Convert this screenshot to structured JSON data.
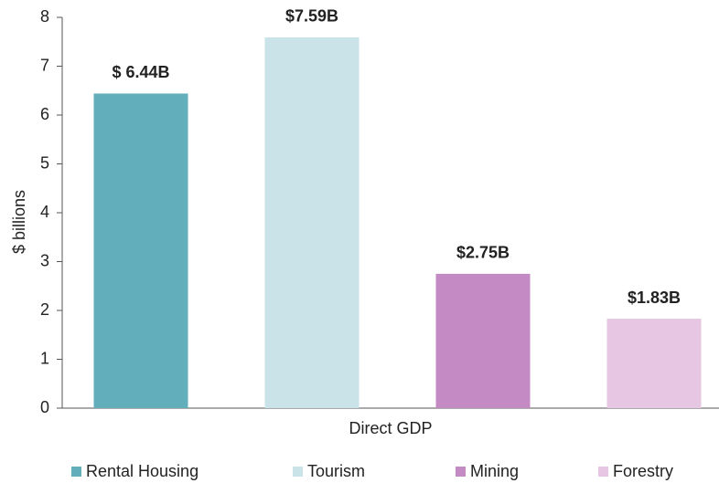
{
  "chart_data": {
    "type": "bar",
    "categories": [
      "Direct GDP"
    ],
    "ylabel": "$ billions",
    "ylim": [
      0,
      8
    ],
    "yticks": [
      0,
      1,
      2,
      3,
      4,
      5,
      6,
      7,
      8
    ],
    "legend": "bottom",
    "series": [
      {
        "name": "Rental Housing",
        "color": "#62aeba",
        "values": [
          6.44
        ],
        "value_labels": [
          "$ 6.44B"
        ]
      },
      {
        "name": "Tourism",
        "color": "#c9e3e8",
        "values": [
          7.59
        ],
        "value_labels": [
          "$7.59B"
        ]
      },
      {
        "name": "Mining",
        "color": "#c48ac4",
        "values": [
          2.75
        ],
        "value_labels": [
          "$2.75B"
        ]
      },
      {
        "name": "Forestry",
        "color": "#e6c6e2",
        "values": [
          1.83
        ],
        "value_labels": [
          "$1.83B"
        ]
      }
    ]
  }
}
